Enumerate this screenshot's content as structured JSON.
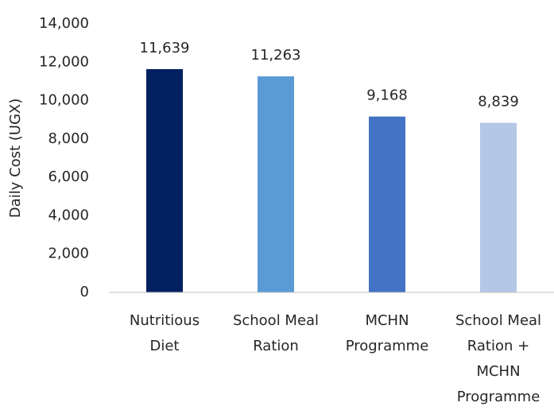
{
  "chart_data": {
    "type": "bar",
    "y_label": "Daily Cost (UGX)",
    "categories": [
      "Nutritious Diet",
      "School Meal Ration",
      "MCHN Programme",
      "School Meal Ration + MCHN Programme"
    ],
    "values": [
      11639,
      11263,
      9168,
      8839
    ],
    "value_labels": [
      "11,639",
      "11,263",
      "9,168",
      "8,839"
    ],
    "colors": [
      "#002060",
      "#5b9bd5",
      "#4472c4",
      "#b4c7e7"
    ],
    "ylim": [
      0,
      14000
    ],
    "yticks": [
      0,
      {
        "value": 2000,
        "label": "2,000"
      },
      {
        "value": 4000,
        "label": "4,000"
      },
      {
        "value": 6000,
        "label": "6,000"
      },
      {
        "value": 8000,
        "label": "8,000"
      },
      {
        "value": 10000,
        "label": "10,000"
      },
      {
        "value": 12000,
        "label": "12,000"
      },
      {
        "value": 14000,
        "label": "14,000"
      }
    ],
    "grid": false
  }
}
